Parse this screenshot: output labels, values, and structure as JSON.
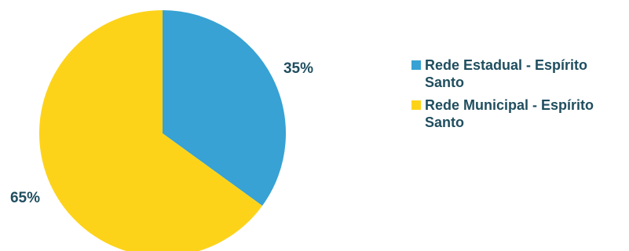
{
  "chart_data": {
    "type": "pie",
    "title": "",
    "start_angle_deg": 0,
    "direction": "clockwise",
    "legend_position": "right",
    "slices": [
      {
        "label": "Rede Estadual - Espírito Santo",
        "value": 35,
        "value_label": "35%",
        "color": "#37a2d3"
      },
      {
        "label": "Rede Municipal - Espírito Santo",
        "value": 65,
        "value_label": "65%",
        "color": "#fdd31a"
      }
    ]
  }
}
